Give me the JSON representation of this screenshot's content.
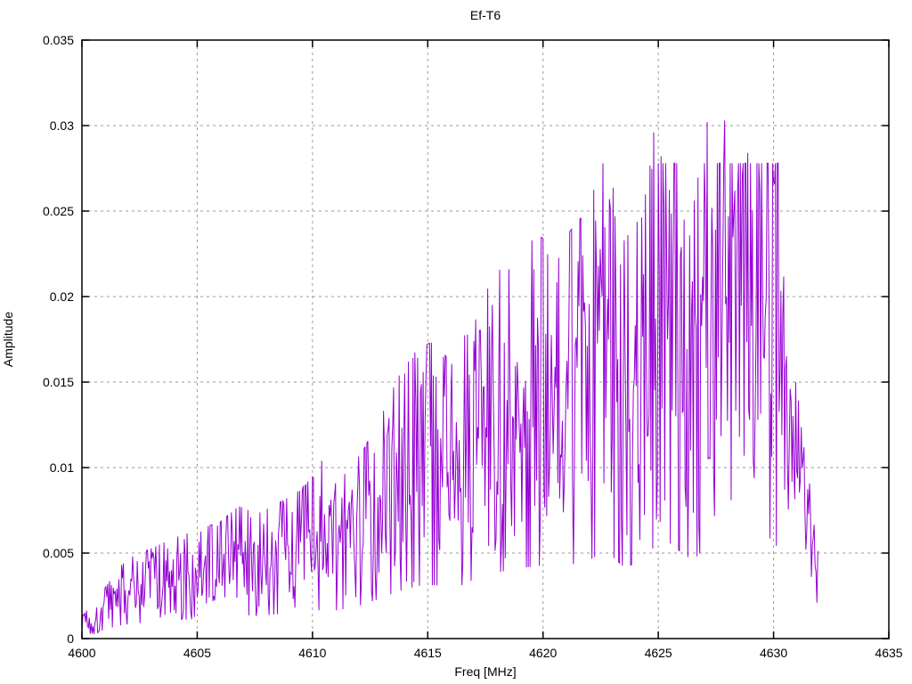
{
  "chart_data": {
    "type": "line",
    "title": "Ef-T6",
    "xlabel": "Freq [MHz]",
    "ylabel": "Amplitude",
    "xlim": [
      4600,
      4635
    ],
    "ylim": [
      0,
      0.035
    ],
    "xtick_values": [
      4600,
      4605,
      4610,
      4615,
      4620,
      4625,
      4630,
      4635
    ],
    "xtick_labels": [
      "4600",
      "4605",
      "4610",
      "4615",
      "4620",
      "4625",
      "4630",
      "4635"
    ],
    "ytick_values": [
      0,
      0.005,
      0.01,
      0.015,
      0.02,
      0.025,
      0.03,
      0.035
    ],
    "ytick_labels": [
      "0",
      "0.005",
      "0.01",
      "0.015",
      "0.02",
      "0.025",
      "0.03",
      "0.035"
    ],
    "grid": true,
    "legend": "none",
    "line_color": "#9400d3",
    "grid_color": "#9a9a9a",
    "border_color": "#000000",
    "series_name": "Ef-T6",
    "x_start": 4600.0,
    "x_end": 4631.95,
    "sample_step_mhz": 0.04,
    "noise_seed": 1337,
    "noise_fraction": 1.2,
    "tail_start": 4630.25,
    "tail_noise_fraction": 0.5,
    "envelope_mean": [
      [
        4600.0,
        0.0013
      ],
      [
        4600.5,
        0.0009
      ],
      [
        4601.0,
        0.0019
      ],
      [
        4601.6,
        0.0027
      ],
      [
        4602.2,
        0.0031
      ],
      [
        4603.0,
        0.0034
      ],
      [
        4604.0,
        0.0038
      ],
      [
        4605.0,
        0.0041
      ],
      [
        4606.0,
        0.0044
      ],
      [
        4606.8,
        0.005
      ],
      [
        4607.6,
        0.0047
      ],
      [
        4608.5,
        0.0051
      ],
      [
        4609.3,
        0.0055
      ],
      [
        4610.0,
        0.0061
      ],
      [
        4610.7,
        0.0056
      ],
      [
        4611.5,
        0.0063
      ],
      [
        4612.2,
        0.0071
      ],
      [
        4613.0,
        0.0085
      ],
      [
        4613.8,
        0.01
      ],
      [
        4614.6,
        0.011
      ],
      [
        4615.3,
        0.0112
      ],
      [
        4616.1,
        0.0103
      ],
      [
        4616.8,
        0.0119
      ],
      [
        4617.5,
        0.0133
      ],
      [
        4618.2,
        0.014
      ],
      [
        4619.0,
        0.0147
      ],
      [
        4619.8,
        0.0152
      ],
      [
        4620.6,
        0.0148
      ],
      [
        4621.3,
        0.0155
      ],
      [
        4622.0,
        0.0163
      ],
      [
        4622.7,
        0.0185
      ],
      [
        4623.5,
        0.015
      ],
      [
        4624.3,
        0.016
      ],
      [
        4625.0,
        0.0198
      ],
      [
        4625.8,
        0.0188
      ],
      [
        4626.5,
        0.0162
      ],
      [
        4627.2,
        0.02
      ],
      [
        4628.0,
        0.0213
      ],
      [
        4628.8,
        0.0218
      ],
      [
        4629.5,
        0.0212
      ],
      [
        4630.0,
        0.0208
      ],
      [
        4630.4,
        0.016
      ],
      [
        4630.8,
        0.0128
      ],
      [
        4631.2,
        0.0098
      ],
      [
        4631.5,
        0.0072
      ],
      [
        4631.8,
        0.005
      ],
      [
        4631.95,
        0.0042
      ]
    ],
    "notable_peaks": [
      [
        4610.4,
        0.0104
      ],
      [
        4613.3,
        0.0129
      ],
      [
        4614.8,
        0.0156
      ],
      [
        4617.0,
        0.0174
      ],
      [
        4619.6,
        0.0216
      ],
      [
        4621.1,
        0.0182
      ],
      [
        4622.4,
        0.0218
      ],
      [
        4622.9,
        0.0257
      ],
      [
        4623.1,
        0.0247
      ],
      [
        4624.8,
        0.0296
      ],
      [
        4625.1,
        0.0282
      ],
      [
        4626.1,
        0.0245
      ],
      [
        4627.1,
        0.0302
      ],
      [
        4627.9,
        0.0303
      ],
      [
        4628.3,
        0.0262
      ],
      [
        4628.9,
        0.0284
      ],
      [
        4629.4,
        0.0262
      ],
      [
        4630.0,
        0.0267
      ]
    ],
    "notable_dips": [
      [
        4600.45,
        0.0003
      ],
      [
        4600.75,
        0.0005
      ],
      [
        4603.3,
        0.0019
      ],
      [
        4607.8,
        0.0026
      ],
      [
        4610.9,
        0.0038
      ],
      [
        4613.6,
        0.0052
      ],
      [
        4616.3,
        0.0069
      ],
      [
        4618.6,
        0.0091
      ],
      [
        4620.8,
        0.0106
      ],
      [
        4621.9,
        0.0104
      ],
      [
        4623.6,
        0.0119
      ],
      [
        4626.4,
        0.011
      ],
      [
        4627.5,
        0.0128
      ],
      [
        4629.2,
        0.013
      ],
      [
        4630.6,
        0.0104
      ],
      [
        4631.9,
        0.0021
      ]
    ]
  }
}
